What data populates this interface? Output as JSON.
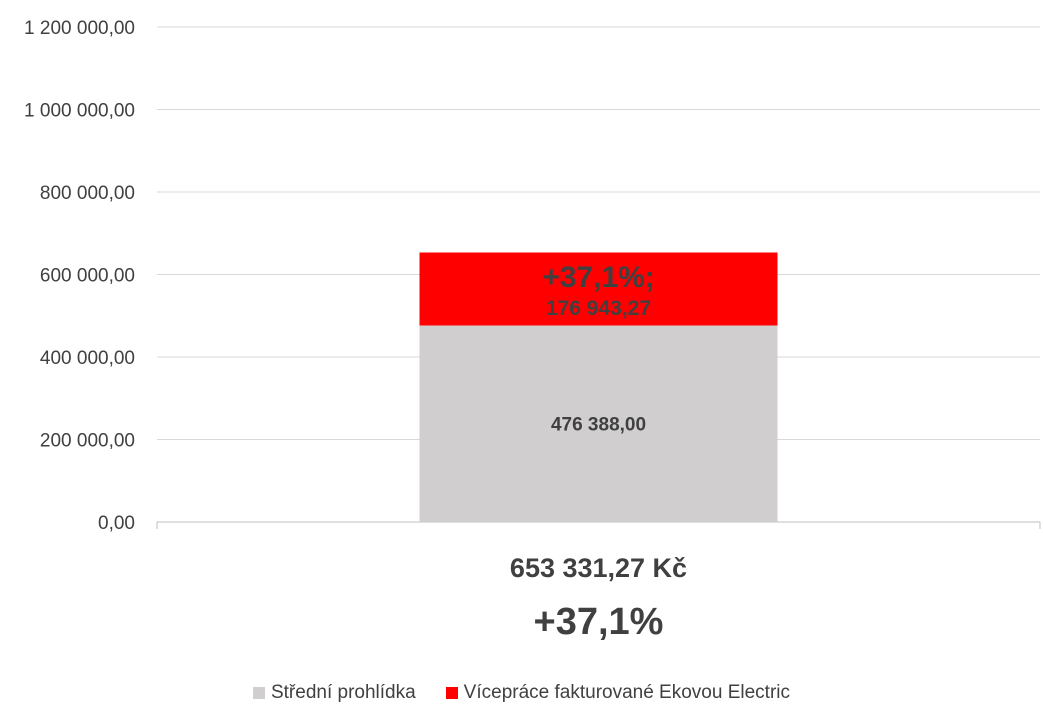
{
  "chart_data": {
    "type": "bar",
    "stacked": true,
    "categories": [
      "653 331,27 Kč"
    ],
    "category_sublabels": [
      "+37,1%"
    ],
    "ylim": [
      0,
      1200000
    ],
    "yticks": [
      0,
      200000,
      400000,
      600000,
      800000,
      1000000,
      1200000
    ],
    "ytick_labels": [
      "0,00",
      "200 000,00",
      "400 000,00",
      "600 000,00",
      "800 000,00",
      "1 000 000,00",
      "1 200 000,00"
    ],
    "grid": true,
    "legend_position": "bottom",
    "series": [
      {
        "name": "Střední prohlídka",
        "values": [
          476388.0
        ],
        "color": "#d0cece",
        "data_labels": [
          "476 388,00"
        ]
      },
      {
        "name": "Vícepráce fakturované Ekovou Electric",
        "values": [
          176943.27
        ],
        "color": "#ff0000",
        "data_labels": [
          "+37,1%;",
          "176 943,27"
        ]
      }
    ]
  }
}
